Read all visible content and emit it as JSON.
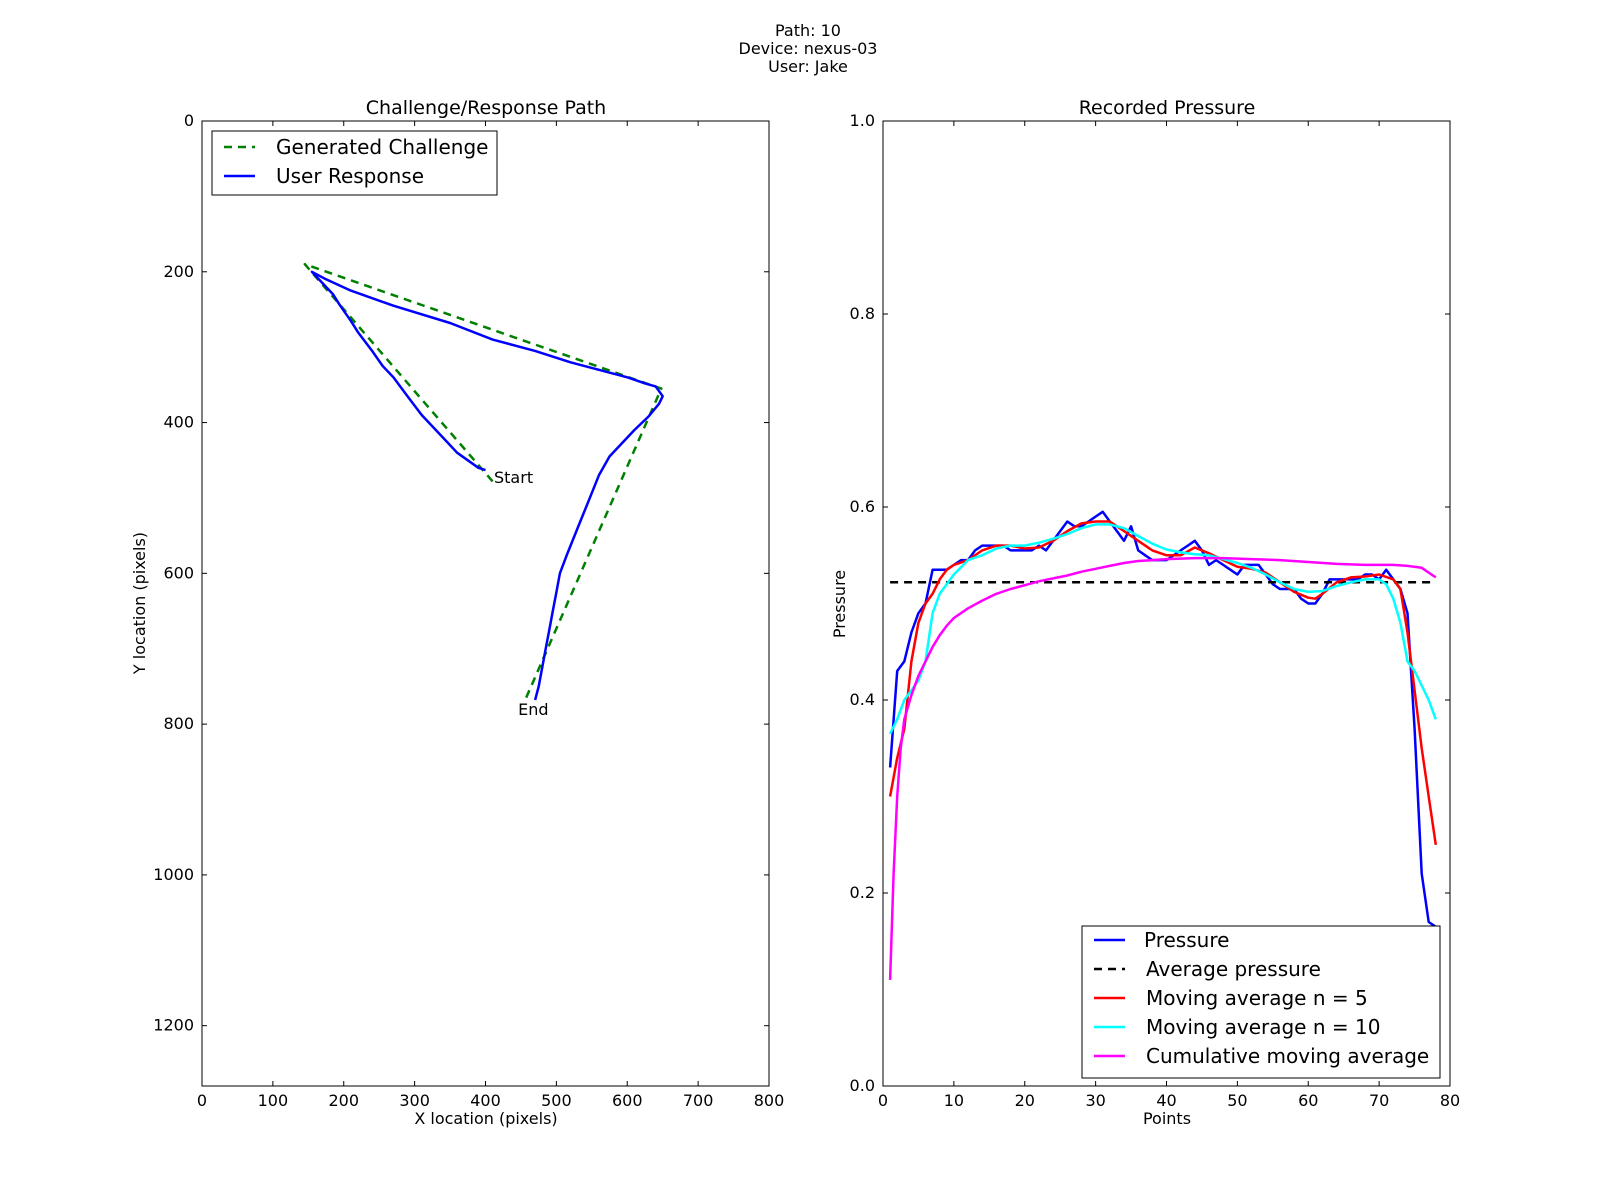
{
  "suptitle": [
    "Path: 10",
    "Device: nexus-03",
    "User: Jake"
  ],
  "colors": {
    "challenge": "#008000",
    "response": "#0000ff",
    "pressure": "#0000ff",
    "average": "#000000",
    "ma5": "#ff0000",
    "ma10": "#00ffff",
    "cma": "#ff00ff"
  },
  "chart_data": [
    {
      "type": "line",
      "title": "Challenge/Response Path",
      "xlabel": "X location (pixels)",
      "ylabel": "Y location (pixels)",
      "xlim": [
        0,
        800
      ],
      "ylim": [
        1280,
        0
      ],
      "y_inverted": true,
      "xticks": [
        0,
        100,
        200,
        300,
        400,
        500,
        600,
        700,
        800
      ],
      "yticks": [
        0,
        200,
        400,
        600,
        800,
        1000,
        1200
      ],
      "legend_position": "upper-left",
      "series": [
        {
          "name": "Generated Challenge",
          "style": "dashed",
          "x": [
            410,
            145,
            648,
            455
          ],
          "y": [
            478,
            190,
            355,
            770
          ]
        },
        {
          "name": "User Response",
          "style": "solid",
          "x": [
            400,
            390,
            360,
            340,
            310,
            290,
            270,
            255,
            240,
            220,
            210,
            195,
            185,
            170,
            155,
            175,
            210,
            270,
            350,
            410,
            470,
            520,
            560,
            600,
            625,
            640,
            650,
            645,
            630,
            610,
            595,
            575,
            560,
            545,
            530,
            515,
            505,
            500,
            495,
            490,
            485,
            480,
            475,
            470
          ],
          "y": [
            463,
            460,
            440,
            420,
            390,
            365,
            340,
            325,
            305,
            280,
            265,
            245,
            230,
            215,
            200,
            210,
            225,
            245,
            268,
            290,
            305,
            320,
            330,
            340,
            348,
            352,
            365,
            375,
            392,
            410,
            425,
            445,
            470,
            505,
            540,
            575,
            600,
            625,
            650,
            675,
            700,
            725,
            750,
            768
          ]
        }
      ],
      "annotations": [
        {
          "text": "Start",
          "x": 412,
          "y": 472
        },
        {
          "text": "End",
          "x": 446,
          "y": 780
        }
      ]
    },
    {
      "type": "line",
      "title": "Recorded Pressure",
      "xlabel": "Points",
      "ylabel": "Pressure",
      "xlim": [
        0,
        80
      ],
      "ylim": [
        0.0,
        1.0
      ],
      "xticks": [
        0,
        10,
        20,
        30,
        40,
        50,
        60,
        70,
        80
      ],
      "yticks": [
        0.0,
        0.2,
        0.4,
        0.6,
        0.8,
        1.0
      ],
      "ytick_labels": [
        "0.0",
        "0.2",
        "0.4",
        "0.6",
        "0.8",
        "1.0"
      ],
      "legend_position": "lower-right",
      "series": [
        {
          "name": "Pressure",
          "style": "solid",
          "x": [
            1,
            2,
            3,
            4,
            5,
            6,
            7,
            8,
            9,
            10,
            11,
            12,
            13,
            14,
            15,
            16,
            17,
            18,
            19,
            20,
            21,
            22,
            23,
            24,
            25,
            26,
            27,
            28,
            29,
            30,
            31,
            32,
            33,
            34,
            35,
            36,
            37,
            38,
            39,
            40,
            41,
            42,
            43,
            44,
            45,
            46,
            47,
            48,
            49,
            50,
            51,
            52,
            53,
            54,
            55,
            56,
            57,
            58,
            59,
            60,
            61,
            62,
            63,
            64,
            65,
            66,
            67,
            68,
            69,
            70,
            71,
            72,
            73,
            74,
            75,
            76,
            77,
            78
          ],
          "y": [
            0.33,
            0.43,
            0.44,
            0.47,
            0.49,
            0.5,
            0.535,
            0.535,
            0.535,
            0.54,
            0.545,
            0.545,
            0.555,
            0.56,
            0.56,
            0.56,
            0.56,
            0.555,
            0.555,
            0.555,
            0.555,
            0.56,
            0.555,
            0.565,
            0.575,
            0.585,
            0.58,
            0.58,
            0.585,
            0.59,
            0.595,
            0.585,
            0.575,
            0.565,
            0.58,
            0.555,
            0.55,
            0.545,
            0.545,
            0.545,
            0.55,
            0.555,
            0.56,
            0.565,
            0.555,
            0.54,
            0.545,
            0.54,
            0.535,
            0.53,
            0.54,
            0.54,
            0.54,
            0.53,
            0.52,
            0.515,
            0.515,
            0.515,
            0.505,
            0.5,
            0.5,
            0.51,
            0.525,
            0.525,
            0.525,
            0.525,
            0.525,
            0.53,
            0.53,
            0.525,
            0.535,
            0.525,
            0.515,
            0.49,
            0.37,
            0.22,
            0.17,
            0.165
          ]
        },
        {
          "name": "Average pressure",
          "style": "dashed",
          "x": [
            1,
            78
          ],
          "y": [
            0.522,
            0.522
          ]
        },
        {
          "name": "Moving average n = 5",
          "style": "solid",
          "x": [
            1,
            2,
            3,
            4,
            5,
            6,
            7,
            8,
            9,
            10,
            12,
            14,
            16,
            18,
            20,
            22,
            24,
            26,
            28,
            30,
            32,
            34,
            36,
            38,
            40,
            42,
            44,
            46,
            48,
            50,
            52,
            54,
            56,
            58,
            60,
            61,
            62,
            64,
            66,
            68,
            70,
            72,
            73,
            74,
            75,
            76,
            77,
            78
          ],
          "y": [
            0.3,
            0.34,
            0.37,
            0.44,
            0.48,
            0.5,
            0.51,
            0.525,
            0.535,
            0.54,
            0.545,
            0.555,
            0.56,
            0.56,
            0.557,
            0.558,
            0.565,
            0.575,
            0.583,
            0.585,
            0.585,
            0.575,
            0.565,
            0.555,
            0.55,
            0.55,
            0.558,
            0.552,
            0.545,
            0.538,
            0.536,
            0.532,
            0.522,
            0.512,
            0.506,
            0.505,
            0.51,
            0.522,
            0.527,
            0.528,
            0.53,
            0.525,
            0.515,
            0.47,
            0.41,
            0.35,
            0.3,
            0.25
          ]
        },
        {
          "name": "Moving average n = 10",
          "style": "solid",
          "x": [
            1,
            2,
            3,
            4,
            5,
            6,
            7,
            8,
            10,
            12,
            14,
            16,
            18,
            20,
            22,
            24,
            26,
            28,
            30,
            32,
            34,
            36,
            38,
            40,
            42,
            44,
            46,
            48,
            50,
            52,
            54,
            56,
            58,
            60,
            62,
            64,
            66,
            68,
            70,
            71,
            72,
            73,
            74,
            75,
            76,
            77,
            78
          ],
          "y": [
            0.365,
            0.38,
            0.4,
            0.41,
            0.42,
            0.44,
            0.49,
            0.51,
            0.53,
            0.545,
            0.55,
            0.557,
            0.56,
            0.56,
            0.563,
            0.567,
            0.572,
            0.578,
            0.582,
            0.582,
            0.578,
            0.57,
            0.562,
            0.556,
            0.553,
            0.551,
            0.55,
            0.546,
            0.542,
            0.537,
            0.53,
            0.522,
            0.515,
            0.512,
            0.513,
            0.518,
            0.522,
            0.525,
            0.525,
            0.52,
            0.505,
            0.48,
            0.44,
            0.43,
            0.415,
            0.4,
            0.38
          ]
        },
        {
          "name": "Cumulative moving average",
          "style": "solid",
          "x": [
            1,
            1.5,
            2,
            2.5,
            3,
            4,
            5,
            6,
            7,
            8,
            9,
            10,
            12,
            14,
            16,
            18,
            20,
            22,
            24,
            26,
            28,
            30,
            32,
            34,
            36,
            38,
            40,
            44,
            48,
            52,
            56,
            60,
            64,
            68,
            72,
            74,
            76,
            77,
            78
          ],
          "y": [
            0.11,
            0.22,
            0.3,
            0.35,
            0.38,
            0.405,
            0.425,
            0.44,
            0.455,
            0.467,
            0.477,
            0.485,
            0.495,
            0.503,
            0.51,
            0.515,
            0.519,
            0.523,
            0.526,
            0.529,
            0.533,
            0.536,
            0.539,
            0.542,
            0.544,
            0.545,
            0.546,
            0.547,
            0.547,
            0.546,
            0.545,
            0.543,
            0.541,
            0.54,
            0.54,
            0.539,
            0.537,
            0.532,
            0.527
          ]
        }
      ]
    }
  ]
}
